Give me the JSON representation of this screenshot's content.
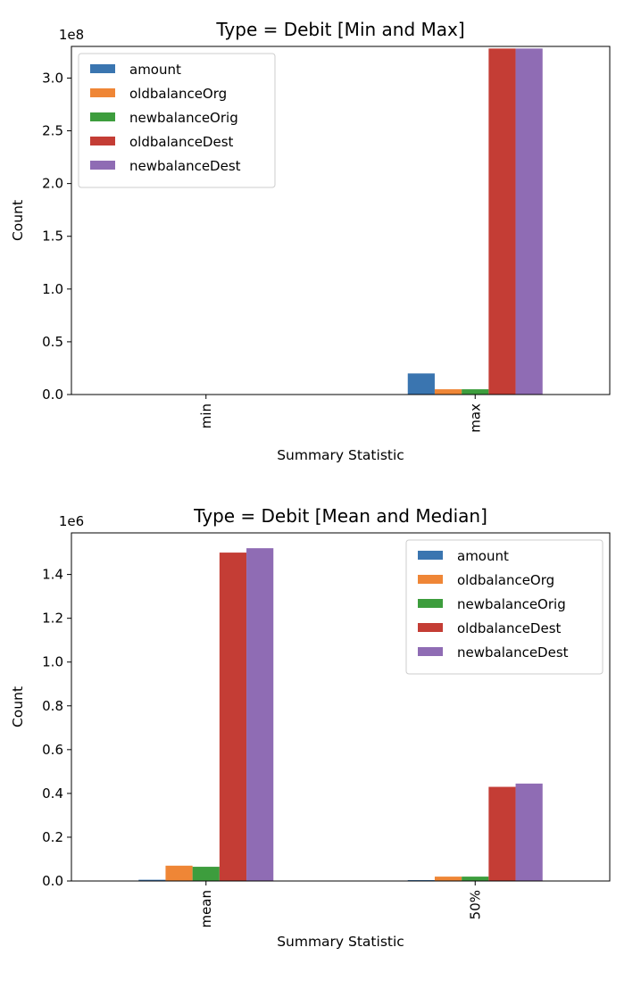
{
  "colors": {
    "amount": "#3a75b0",
    "oldbalanceOrg": "#ef8636",
    "newbalanceOrig": "#3d9d3d",
    "oldbalanceDest": "#c43d35",
    "newbalanceDest": "#8f6cb4"
  },
  "chart_data": [
    {
      "type": "bar",
      "title": "Type = Debit [Min and Max]",
      "xlabel": "Summary Statistic",
      "ylabel": "Count",
      "multiplier_label": "1e8",
      "scale": 100000000,
      "categories": [
        "min",
        "max"
      ],
      "ylim": [
        0,
        330000000
      ],
      "yticks": [
        0,
        50000000,
        100000000,
        150000000,
        200000000,
        250000000,
        300000000
      ],
      "ytick_labels": [
        "0.0",
        "0.5",
        "1.0",
        "1.5",
        "2.0",
        "2.5",
        "3.0"
      ],
      "legend_position": "top-left",
      "grid": false,
      "series": [
        {
          "name": "amount",
          "values": [
            10,
            20000000
          ]
        },
        {
          "name": "oldbalanceOrg",
          "values": [
            0,
            5000000
          ]
        },
        {
          "name": "newbalanceOrig",
          "values": [
            0,
            5000000
          ]
        },
        {
          "name": "oldbalanceDest",
          "values": [
            0,
            328000000
          ]
        },
        {
          "name": "newbalanceDest",
          "values": [
            0,
            328000000
          ]
        }
      ]
    },
    {
      "type": "bar",
      "title": "Type = Debit [Mean and Median]",
      "xlabel": "Summary Statistic",
      "ylabel": "Count",
      "multiplier_label": "1e6",
      "scale": 1000000,
      "categories": [
        "mean",
        "50%"
      ],
      "ylim": [
        0,
        1590000
      ],
      "yticks": [
        0,
        200000,
        400000,
        600000,
        800000,
        1000000,
        1200000,
        1400000
      ],
      "ytick_labels": [
        "0.0",
        "0.2",
        "0.4",
        "0.6",
        "0.8",
        "1.0",
        "1.2",
        "1.4"
      ],
      "legend_position": "top-right",
      "grid": false,
      "series": [
        {
          "name": "amount",
          "values": [
            5600,
            4000
          ]
        },
        {
          "name": "oldbalanceOrg",
          "values": [
            70000,
            20000
          ]
        },
        {
          "name": "newbalanceOrig",
          "values": [
            65000,
            20000
          ]
        },
        {
          "name": "oldbalanceDest",
          "values": [
            1500000,
            430000
          ]
        },
        {
          "name": "newbalanceDest",
          "values": [
            1520000,
            445000
          ]
        }
      ]
    }
  ]
}
